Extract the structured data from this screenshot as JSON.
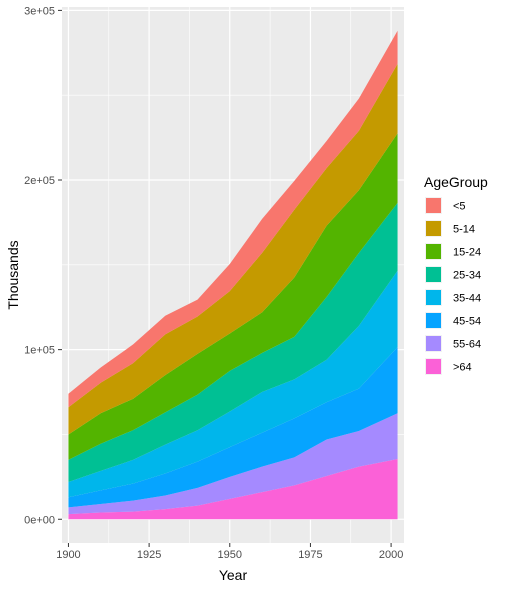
{
  "chart_data": {
    "type": "area",
    "stacked": true,
    "xlabel": "Year",
    "ylabel": "Thousands",
    "xlim": [
      1898,
      2004
    ],
    "ylim": [
      -14000,
      302000
    ],
    "x_ticks": [
      1900,
      1925,
      1950,
      1975,
      2000
    ],
    "x_tick_labels": [
      "1900",
      "1925",
      "1950",
      "1975",
      "2000"
    ],
    "y_ticks": [
      0,
      100000,
      200000,
      300000
    ],
    "y_tick_labels": [
      "0e+00",
      "1e+05",
      "2e+05",
      "3e+05"
    ],
    "grid": true,
    "legend": {
      "title": "AgeGroup",
      "placement": "right"
    },
    "x": [
      1900,
      1910,
      1920,
      1930,
      1940,
      1950,
      1960,
      1970,
      1980,
      1990,
      2002
    ],
    "series": [
      {
        "name": "<5",
        "color": "#F8766D",
        "values": [
          8000,
          9000,
          11000,
          11000,
          10000,
          16000,
          20000,
          17000,
          16000,
          19000,
          19500
        ]
      },
      {
        "name": "5-14",
        "color": "#C49A00",
        "values": [
          16000,
          18000,
          21000,
          24000,
          22000,
          25000,
          35000,
          40000,
          34000,
          35000,
          41000
        ]
      },
      {
        "name": "15-24",
        "color": "#53B400",
        "values": [
          15000,
          18000,
          18500,
          22000,
          24000,
          22000,
          24000,
          35000,
          42000,
          37000,
          41000
        ]
      },
      {
        "name": "25-34",
        "color": "#00C094",
        "values": [
          13000,
          16000,
          17500,
          19000,
          21000,
          24000,
          23000,
          25000,
          37000,
          43000,
          40000
        ]
      },
      {
        "name": "35-44",
        "color": "#00B6EB",
        "values": [
          9000,
          11500,
          14000,
          17000,
          18500,
          21000,
          24000,
          23000,
          25000,
          37000,
          45000
        ]
      },
      {
        "name": "45-54",
        "color": "#06A4FF",
        "values": [
          6000,
          8000,
          10000,
          13000,
          15500,
          17500,
          20000,
          23000,
          22000,
          25000,
          39000
        ]
      },
      {
        "name": "55-64",
        "color": "#A58AFF",
        "values": [
          4000,
          5000,
          6500,
          8000,
          10500,
          13000,
          15000,
          16500,
          21500,
          21000,
          27000
        ]
      },
      {
        "name": ">64",
        "color": "#FB61D7",
        "values": [
          3000,
          4000,
          4500,
          6000,
          8000,
          12000,
          16000,
          20000,
          25500,
          31000,
          35500
        ]
      }
    ]
  }
}
